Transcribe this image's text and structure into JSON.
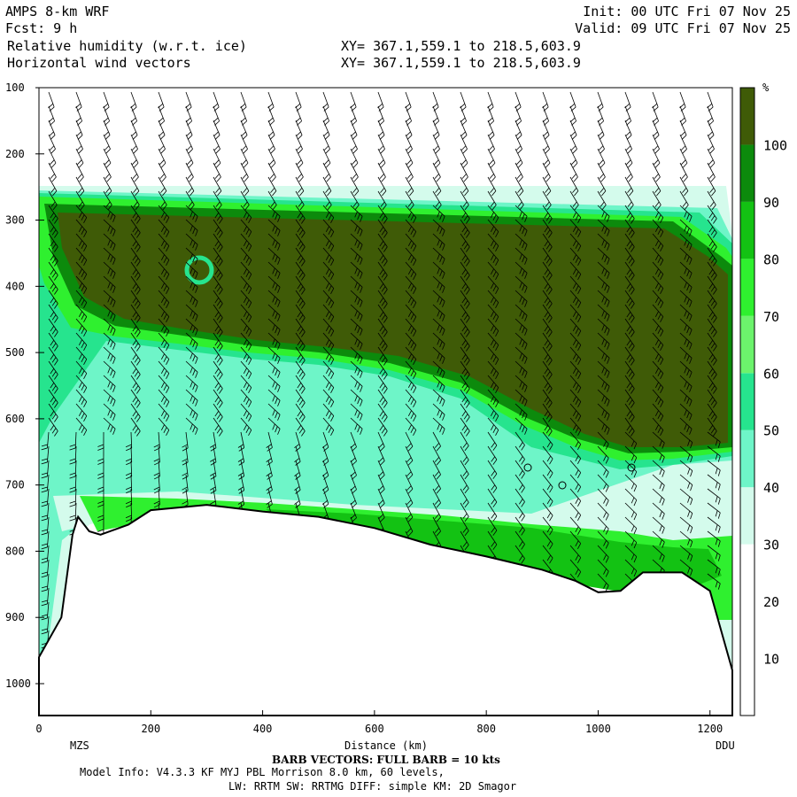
{
  "header": {
    "model": "AMPS 8-km WRF",
    "fcst": "Fcst:    9 h",
    "field1": "Relative humidity (w.r.t. ice)",
    "field2": "Horizontal wind vectors",
    "init": "Init: 00 UTC Fri 07 Nov 25",
    "valid": "Valid: 09 UTC Fri 07 Nov 25",
    "xy1": "XY= 367.1,559.1 to 218.5,603.9",
    "xy2": "XY= 367.1,559.1 to 218.5,603.9"
  },
  "footer": {
    "barb_note": "BARB VECTORS:  FULL BARB = 10 kts",
    "model_info": "Model Info: V4.3.3   KF      MYJ PBL  Morrison          8.0 km,  60 levels,",
    "physics": "LW: RRTM SW: RRTMG   DIFF: simple KM: 2D Smagor"
  },
  "chart_data": {
    "type": "cross-section",
    "xlabel": "Distance (km)",
    "ylabel": "",
    "x_ticks": [
      "0",
      "200",
      "400",
      "600",
      "800",
      "1000",
      "1200"
    ],
    "y_ticks": [
      "100",
      "200",
      "300",
      "400",
      "500",
      "600",
      "700",
      "800",
      "900",
      "1000"
    ],
    "xlim": [
      0,
      1240
    ],
    "ylim": [
      1050,
      100
    ],
    "endpoint_left": "MZS",
    "endpoint_right": "DDU",
    "colorbar": {
      "unit": "%",
      "labels": [
        "10",
        "20",
        "30",
        "40",
        "50",
        "60",
        "70",
        "80",
        "90",
        "100"
      ],
      "bins": [
        {
          "from": 0,
          "to": 30,
          "color": "#ffffff"
        },
        {
          "from": 30,
          "to": 40,
          "color": "#d4fbec"
        },
        {
          "from": 40,
          "to": 50,
          "color": "#6ef5c8"
        },
        {
          "from": 50,
          "to": 60,
          "color": "#26e48e"
        },
        {
          "from": 60,
          "to": 70,
          "color": "#6cf36c"
        },
        {
          "from": 70,
          "to": 80,
          "color": "#2ff02f"
        },
        {
          "from": 80,
          "to": 90,
          "color": "#13c213"
        },
        {
          "from": 90,
          "to": 100,
          "color": "#0c8a0c"
        },
        {
          "from": 100,
          "to": 110,
          "color": "#3f5b07"
        }
      ]
    },
    "terrain_pressure": [
      [
        0,
        960
      ],
      [
        40,
        900
      ],
      [
        60,
        775
      ],
      [
        70,
        748
      ],
      [
        90,
        770
      ],
      [
        110,
        775
      ],
      [
        160,
        760
      ],
      [
        200,
        738
      ],
      [
        300,
        730
      ],
      [
        400,
        740
      ],
      [
        500,
        748
      ],
      [
        600,
        765
      ],
      [
        700,
        790
      ],
      [
        800,
        808
      ],
      [
        900,
        828
      ],
      [
        960,
        845
      ],
      [
        1000,
        862
      ],
      [
        1040,
        860
      ],
      [
        1080,
        832
      ],
      [
        1150,
        832
      ],
      [
        1200,
        860
      ],
      [
        1240,
        980
      ]
    ]
  }
}
